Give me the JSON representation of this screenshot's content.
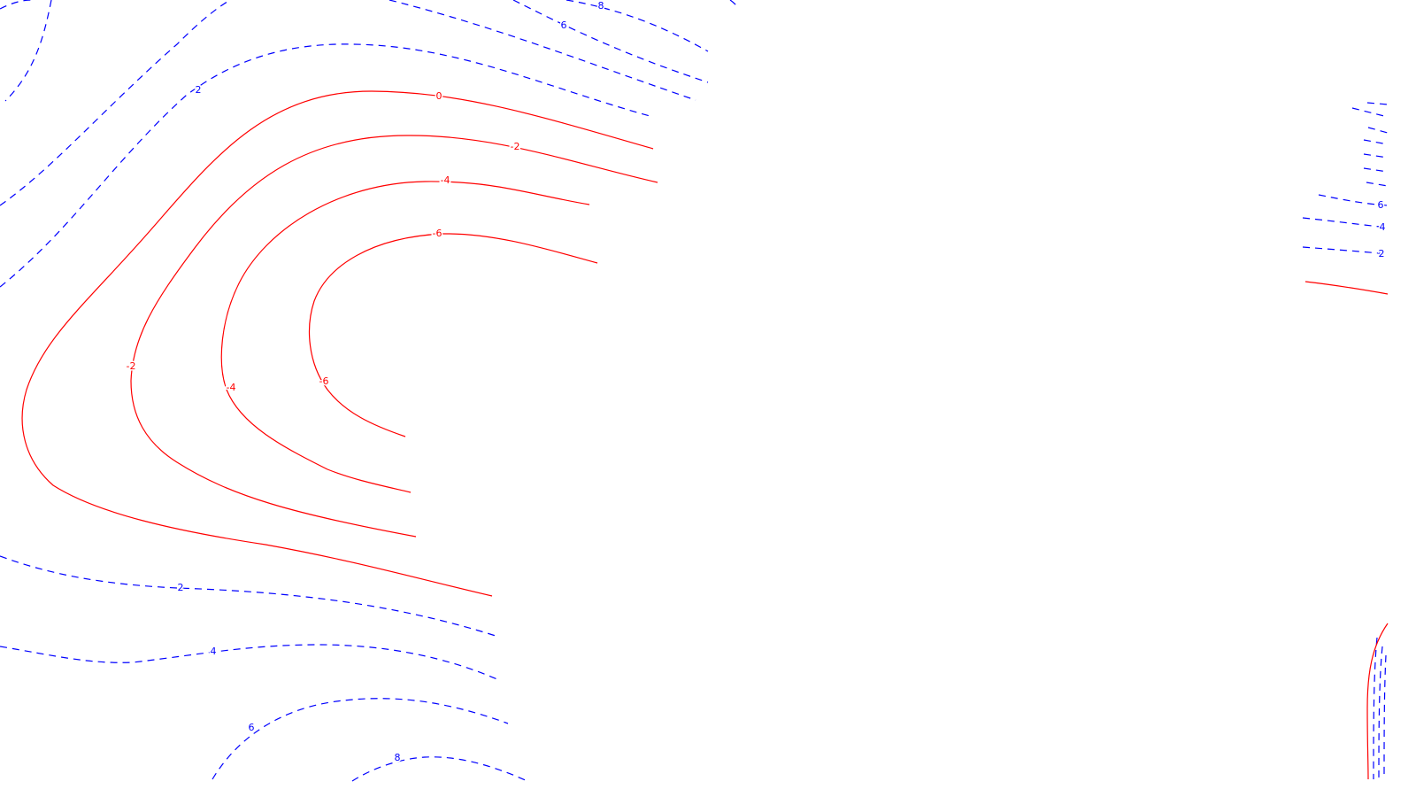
{
  "chart_data": {
    "type": "contour",
    "grid": false,
    "colors": {
      "non_negative": "#ff0000",
      "positive": "#0000ff",
      "background": "#ffffff"
    },
    "line_styles": {
      "non_negative": "solid",
      "positive": "dashed"
    },
    "contour_levels": [
      {
        "id": "red-0",
        "level": 0,
        "label": "0",
        "series": "non_negative"
      },
      {
        "id": "red-m2",
        "level": -2,
        "label": "-2",
        "series": "non_negative"
      },
      {
        "id": "red-m4",
        "level": -4,
        "label": "-4",
        "series": "non_negative"
      },
      {
        "id": "red-m6",
        "level": -6,
        "label": "-6",
        "series": "non_negative"
      },
      {
        "id": "blue-top-2",
        "level": 2,
        "label": "2",
        "series": "positive"
      },
      {
        "id": "blue-top-4",
        "level": 4,
        "label": "",
        "series": "positive"
      },
      {
        "id": "blue-top-6",
        "level": 6,
        "label": "6",
        "series": "positive"
      },
      {
        "id": "blue-top-8",
        "level": 8,
        "label": "8",
        "series": "positive"
      },
      {
        "id": "blue-bot-2",
        "level": 2,
        "label": "2",
        "series": "positive"
      },
      {
        "id": "blue-bot-4",
        "level": 4,
        "label": "4",
        "series": "positive"
      },
      {
        "id": "blue-bot-6",
        "level": 6,
        "label": "6",
        "series": "positive"
      },
      {
        "id": "blue-bot-8",
        "level": 8,
        "label": "8",
        "series": "positive"
      },
      {
        "id": "blue-right-6",
        "level": 6,
        "label": "6",
        "series": "positive"
      },
      {
        "id": "blue-right-4",
        "level": 4,
        "label": "4",
        "series": "positive"
      },
      {
        "id": "blue-right-2",
        "level": 2,
        "label": "2",
        "series": "positive"
      },
      {
        "id": "red-right-0",
        "level": 0,
        "label": "",
        "series": "non_negative"
      }
    ]
  }
}
